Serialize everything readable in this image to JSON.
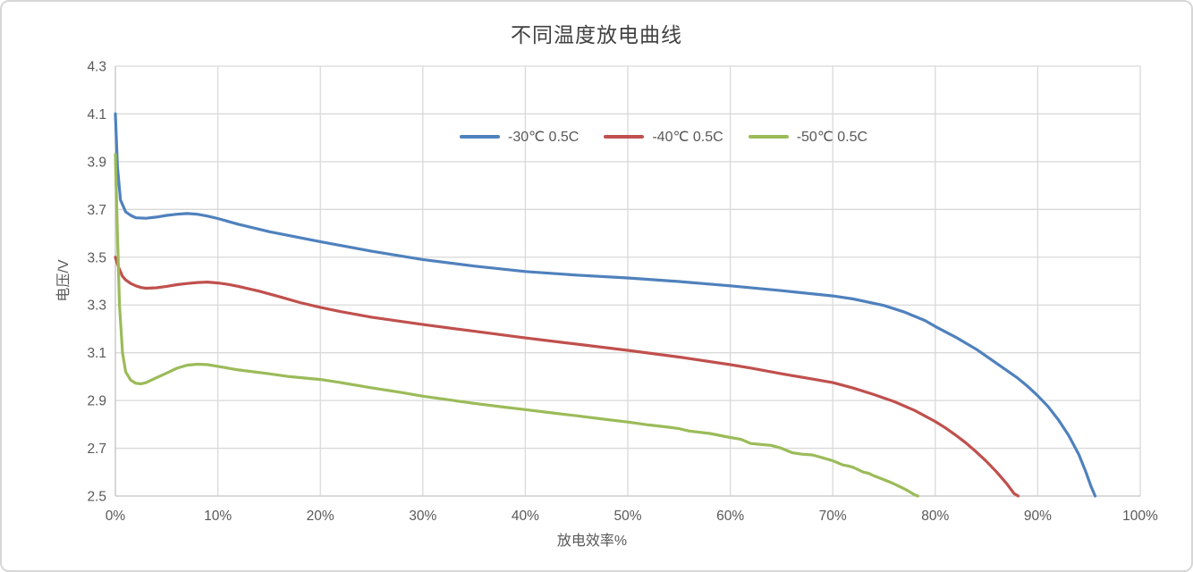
{
  "chart_data": {
    "type": "line",
    "title": "不同温度放电曲线",
    "x_axis": {
      "title": "放电效率%",
      "min": 0,
      "max": 100,
      "ticks": [
        {
          "value": 0,
          "label": "0%"
        },
        {
          "value": 10,
          "label": "10%"
        },
        {
          "value": 20,
          "label": "20%"
        },
        {
          "value": 30,
          "label": "30%"
        },
        {
          "value": 40,
          "label": "40%"
        },
        {
          "value": 50,
          "label": "50%"
        },
        {
          "value": 60,
          "label": "60%"
        },
        {
          "value": 70,
          "label": "70%"
        },
        {
          "value": 80,
          "label": "80%"
        },
        {
          "value": 90,
          "label": "90%"
        },
        {
          "value": 100,
          "label": "100%"
        }
      ]
    },
    "y_axis": {
      "title": "电压/V",
      "min": 2.5,
      "max": 4.3,
      "ticks": [
        {
          "value": 2.5,
          "label": "2.5"
        },
        {
          "value": 2.7,
          "label": "2.7"
        },
        {
          "value": 2.9,
          "label": "2.9"
        },
        {
          "value": 3.1,
          "label": "3.1"
        },
        {
          "value": 3.3,
          "label": "3.3"
        },
        {
          "value": 3.5,
          "label": "3.5"
        },
        {
          "value": 3.7,
          "label": "3.7"
        },
        {
          "value": 3.9,
          "label": "3.9"
        },
        {
          "value": 4.1,
          "label": "4.1"
        },
        {
          "value": 4.3,
          "label": "4.3"
        }
      ]
    },
    "grid": true,
    "legend_position": "top-inside",
    "colors": {
      "grid": "#d9d9d9",
      "axis": "#c9c9c9",
      "axis_text": "#595959",
      "title_text": "#404040"
    },
    "series": [
      {
        "name": "-30℃ 0.5C",
        "color": "#4F81BD",
        "points": [
          [
            0,
            4.1
          ],
          [
            0.2,
            3.88
          ],
          [
            0.5,
            3.74
          ],
          [
            1,
            3.69
          ],
          [
            1.5,
            3.675
          ],
          [
            2,
            3.665
          ],
          [
            3,
            3.663
          ],
          [
            4,
            3.668
          ],
          [
            5,
            3.675
          ],
          [
            6,
            3.68
          ],
          [
            7,
            3.683
          ],
          [
            8,
            3.68
          ],
          [
            9,
            3.672
          ],
          [
            10,
            3.662
          ],
          [
            12,
            3.638
          ],
          [
            15,
            3.607
          ],
          [
            18,
            3.582
          ],
          [
            20,
            3.565
          ],
          [
            25,
            3.525
          ],
          [
            30,
            3.49
          ],
          [
            35,
            3.463
          ],
          [
            40,
            3.44
          ],
          [
            45,
            3.425
          ],
          [
            50,
            3.413
          ],
          [
            55,
            3.398
          ],
          [
            60,
            3.38
          ],
          [
            65,
            3.36
          ],
          [
            70,
            3.338
          ],
          [
            72,
            3.325
          ],
          [
            75,
            3.298
          ],
          [
            77,
            3.27
          ],
          [
            79,
            3.235
          ],
          [
            80,
            3.21
          ],
          [
            82,
            3.165
          ],
          [
            84,
            3.115
          ],
          [
            86,
            3.055
          ],
          [
            88,
            2.995
          ],
          [
            89,
            2.96
          ],
          [
            90,
            2.92
          ],
          [
            91,
            2.875
          ],
          [
            92,
            2.82
          ],
          [
            93,
            2.755
          ],
          [
            94,
            2.675
          ],
          [
            94.7,
            2.6
          ],
          [
            95.2,
            2.54
          ],
          [
            95.6,
            2.5
          ]
        ]
      },
      {
        "name": "-40℃ 0.5C",
        "color": "#C0504D",
        "points": [
          [
            0,
            3.5
          ],
          [
            0.3,
            3.46
          ],
          [
            0.7,
            3.42
          ],
          [
            1,
            3.405
          ],
          [
            1.5,
            3.39
          ],
          [
            2,
            3.38
          ],
          [
            2.5,
            3.373
          ],
          [
            3,
            3.37
          ],
          [
            4,
            3.372
          ],
          [
            5,
            3.378
          ],
          [
            6,
            3.385
          ],
          [
            7,
            3.39
          ],
          [
            8,
            3.394
          ],
          [
            9,
            3.396
          ],
          [
            10,
            3.392
          ],
          [
            11,
            3.386
          ],
          [
            12,
            3.378
          ],
          [
            14,
            3.358
          ],
          [
            16,
            3.335
          ],
          [
            18,
            3.31
          ],
          [
            20,
            3.29
          ],
          [
            22,
            3.272
          ],
          [
            25,
            3.249
          ],
          [
            30,
            3.218
          ],
          [
            35,
            3.19
          ],
          [
            40,
            3.162
          ],
          [
            45,
            3.136
          ],
          [
            50,
            3.11
          ],
          [
            55,
            3.082
          ],
          [
            60,
            3.05
          ],
          [
            62,
            3.036
          ],
          [
            65,
            3.012
          ],
          [
            68,
            2.99
          ],
          [
            70,
            2.975
          ],
          [
            72,
            2.952
          ],
          [
            74,
            2.925
          ],
          [
            76,
            2.895
          ],
          [
            78,
            2.858
          ],
          [
            80,
            2.812
          ],
          [
            81,
            2.785
          ],
          [
            82,
            2.755
          ],
          [
            83,
            2.722
          ],
          [
            84,
            2.685
          ],
          [
            85,
            2.645
          ],
          [
            86,
            2.6
          ],
          [
            87,
            2.55
          ],
          [
            87.7,
            2.51
          ],
          [
            88.1,
            2.5
          ]
        ]
      },
      {
        "name": "-50℃ 0.5C",
        "color": "#9BBB59",
        "points": [
          [
            0,
            3.93
          ],
          [
            0.2,
            3.6
          ],
          [
            0.4,
            3.3
          ],
          [
            0.7,
            3.1
          ],
          [
            1,
            3.02
          ],
          [
            1.5,
            2.985
          ],
          [
            2,
            2.972
          ],
          [
            2.5,
            2.97
          ],
          [
            3,
            2.975
          ],
          [
            4,
            2.995
          ],
          [
            5,
            3.015
          ],
          [
            6,
            3.035
          ],
          [
            7,
            3.048
          ],
          [
            8,
            3.052
          ],
          [
            9,
            3.05
          ],
          [
            10,
            3.043
          ],
          [
            12,
            3.028
          ],
          [
            15,
            3.012
          ],
          [
            17,
            3.0
          ],
          [
            20,
            2.988
          ],
          [
            22,
            2.975
          ],
          [
            25,
            2.953
          ],
          [
            28,
            2.933
          ],
          [
            30,
            2.918
          ],
          [
            33,
            2.9
          ],
          [
            35,
            2.888
          ],
          [
            38,
            2.872
          ],
          [
            40,
            2.862
          ],
          [
            43,
            2.846
          ],
          [
            45,
            2.836
          ],
          [
            48,
            2.82
          ],
          [
            50,
            2.81
          ],
          [
            52,
            2.798
          ],
          [
            54,
            2.788
          ],
          [
            55,
            2.782
          ],
          [
            56,
            2.772
          ],
          [
            58,
            2.762
          ],
          [
            60,
            2.745
          ],
          [
            61,
            2.738
          ],
          [
            62,
            2.72
          ],
          [
            63,
            2.716
          ],
          [
            64,
            2.712
          ],
          [
            65,
            2.7
          ],
          [
            66,
            2.682
          ],
          [
            67,
            2.675
          ],
          [
            68,
            2.672
          ],
          [
            69,
            2.66
          ],
          [
            70,
            2.648
          ],
          [
            71,
            2.63
          ],
          [
            71.5,
            2.626
          ],
          [
            72,
            2.62
          ],
          [
            73,
            2.6
          ],
          [
            73.5,
            2.595
          ],
          [
            74,
            2.585
          ],
          [
            75,
            2.568
          ],
          [
            75.5,
            2.56
          ],
          [
            76,
            2.55
          ],
          [
            77,
            2.53
          ],
          [
            77.5,
            2.518
          ],
          [
            78,
            2.505
          ],
          [
            78.3,
            2.5
          ]
        ]
      }
    ]
  }
}
